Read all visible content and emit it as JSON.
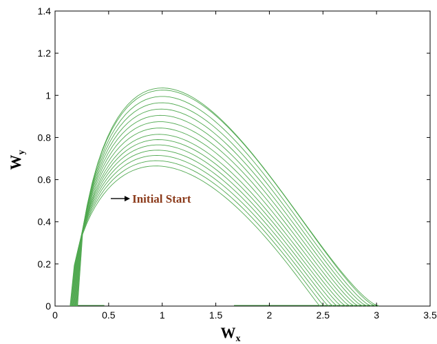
{
  "chart_data": {
    "type": "line",
    "title": "",
    "xlabel": {
      "main": "W",
      "sub": "x"
    },
    "ylabel": {
      "main": "W",
      "sub": "y"
    },
    "xlim": [
      0,
      3.5
    ],
    "ylim": [
      0,
      1.4
    ],
    "xticks": [
      "0",
      "0.5",
      "1",
      "1.5",
      "2",
      "2.5",
      "3",
      "3.5"
    ],
    "yticks": [
      "0",
      "0.2",
      "0.4",
      "0.6",
      "0.8",
      "1",
      "1.2",
      "1.4"
    ],
    "grid": false,
    "line_color": "#4fa84f",
    "annotation": {
      "text": "Initial Start",
      "color": "#8b3a1a",
      "x": 0.72,
      "y": 0.51,
      "arrow_to": [
        0.52,
        0.51
      ]
    },
    "curve_params": {
      "x_start": [
        0.14,
        0.145,
        0.15,
        0.155,
        0.16,
        0.165,
        0.17,
        0.175,
        0.18,
        0.185,
        0.19,
        0.195,
        0.2,
        0.205,
        0.21
      ],
      "x_end": [
        2.47,
        2.51,
        2.55,
        2.59,
        2.63,
        2.67,
        2.71,
        2.75,
        2.79,
        2.83,
        2.87,
        2.91,
        2.95,
        2.99,
        3.02
      ],
      "x_peak": [
        0.94,
        0.945,
        0.95,
        0.955,
        0.96,
        0.965,
        0.97,
        0.975,
        0.98,
        0.985,
        0.99,
        0.995,
        1.0,
        1.005,
        1.0
      ],
      "peak": [
        0.665,
        0.69,
        0.715,
        0.74,
        0.765,
        0.79,
        0.815,
        0.845,
        0.875,
        0.905,
        0.935,
        0.965,
        0.995,
        1.025,
        1.035
      ]
    },
    "baseline_segments": [
      [
        0.14,
        0.46
      ],
      [
        1.67,
        3.02
      ]
    ]
  }
}
